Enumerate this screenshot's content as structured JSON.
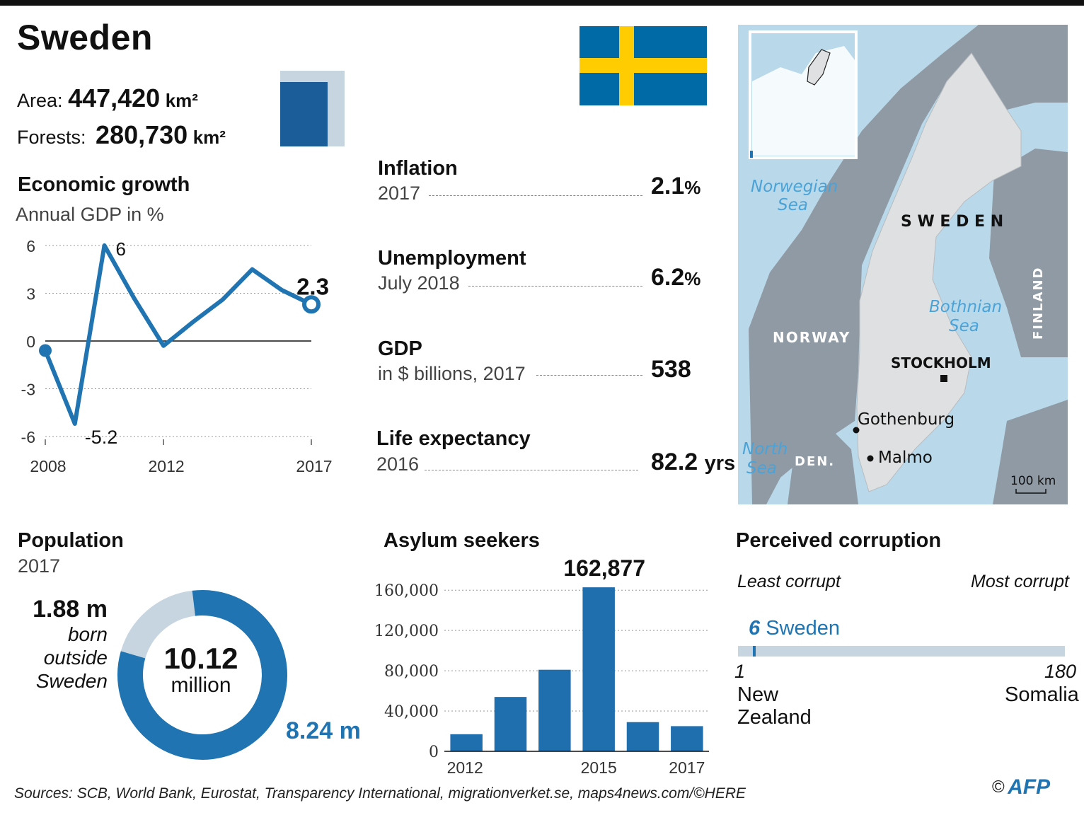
{
  "title": "Sweden",
  "area": {
    "label": "Area:",
    "value": "447,420",
    "unit": "km²"
  },
  "forests": {
    "label": "Forests:",
    "value": "280,730",
    "unit": "km²",
    "share": 0.627
  },
  "colors": {
    "blue": "#1f74b1",
    "light_blue": "#c7d5e0",
    "flag_blue": "#006aa7",
    "flag_yellow": "#fecc00",
    "sea": "#b9d9ea",
    "land_other": "#8f9aa5",
    "land_sweden": "#dfe0e1"
  },
  "economic_growth": {
    "title": "Economic growth",
    "subtitle": "Annual GDP in %"
  },
  "chart_data": [
    {
      "type": "line",
      "title": "Economic growth",
      "subtitle": "Annual GDP in %",
      "x": [
        2008,
        2009,
        2010,
        2011,
        2012,
        2013,
        2014,
        2015,
        2016,
        2017
      ],
      "values": [
        -0.6,
        -5.2,
        6.0,
        2.7,
        -0.3,
        1.2,
        2.6,
        4.5,
        3.2,
        2.3
      ],
      "yticks": [
        "6",
        "3",
        "0",
        "-3",
        "-6"
      ],
      "ytick_values": [
        6,
        3,
        0,
        -3,
        -6
      ],
      "xticks": [
        "2008",
        "2012",
        "2017"
      ],
      "ylim": [
        -6,
        6
      ],
      "annotations": [
        {
          "x": 2010,
          "label": "6"
        },
        {
          "x": 2009,
          "label": "-5.2"
        },
        {
          "x": 2017,
          "label": "2.3"
        }
      ]
    },
    {
      "type": "bar",
      "title": "Asylum seekers",
      "categories": [
        2012,
        2013,
        2014,
        2015,
        2016,
        2017
      ],
      "values": [
        17000,
        54000,
        81000,
        162877,
        29000,
        25000
      ],
      "peak_label": "162,877",
      "yticks": [
        "160,000",
        "120,000",
        "80,000",
        "40,000",
        "0"
      ],
      "ytick_values": [
        160000,
        120000,
        80000,
        40000,
        0
      ],
      "xticks": [
        "2012",
        "2015",
        "2017"
      ],
      "ylim": [
        0,
        170000
      ]
    },
    {
      "type": "pie",
      "title": "Population",
      "subtitle": "2017",
      "total": "10.12",
      "total_unit": "million",
      "slices": [
        {
          "name": "born outside Sweden",
          "value": 1.88,
          "label": "1.88 m",
          "text": [
            "born",
            "outside",
            "Sweden"
          ]
        },
        {
          "name": "born in Sweden",
          "value": 8.24,
          "label": "8.24 m"
        }
      ]
    },
    {
      "type": "bar",
      "title": "Perceived corruption",
      "left_label": "Least corrupt",
      "right_label": "Most corrupt",
      "min": 1,
      "max": 180,
      "rank": 6,
      "country": "Sweden",
      "min_label": "1",
      "max_label": "180",
      "min_country": [
        "New",
        "Zealand"
      ],
      "max_country": "Somalia"
    }
  ],
  "stats": [
    {
      "label": "Inflation",
      "sub": "2017",
      "value": "2.1",
      "unit": "%"
    },
    {
      "label": "Unemployment",
      "sub": "July 2018",
      "value": "6.2",
      "unit": "%"
    },
    {
      "label": "GDP",
      "sub": "in $ billions, 2017",
      "value": "538",
      "unit": ""
    },
    {
      "label": "Life expectancy",
      "sub": "2016",
      "value": "82.2",
      "unit": "yrs"
    }
  ],
  "map": {
    "country": "S W E D E N",
    "capital": "STOCKHOLM",
    "cities": [
      "Gothenburg",
      "Malmo"
    ],
    "countries": [
      "NORWAY",
      "FINLAND",
      "DEN."
    ],
    "seas": [
      [
        "Norwegian",
        "Sea"
      ],
      [
        "Bothnian",
        "Sea"
      ],
      [
        "North",
        "Sea"
      ]
    ],
    "scale": "100 km"
  },
  "sources": "Sources: SCB, World Bank, Eurostat, Transparency International, migrationverket.se, maps4news.com/©HERE",
  "credit": {
    "copyright": "©",
    "agency": "AFP"
  }
}
